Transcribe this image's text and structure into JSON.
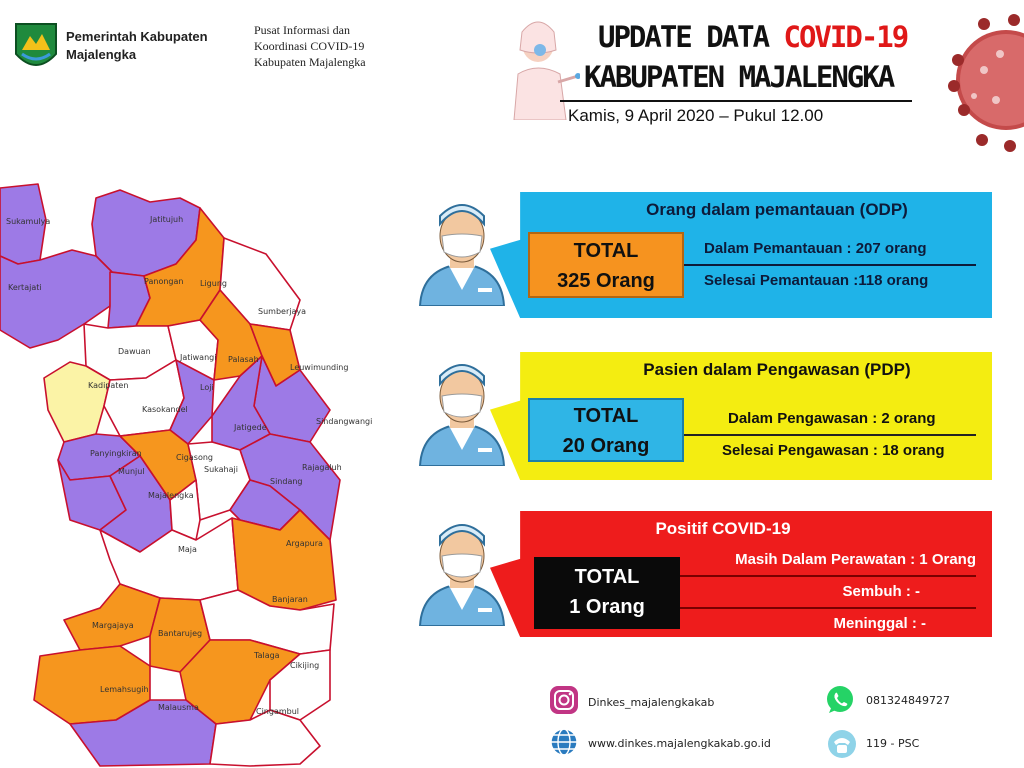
{
  "header": {
    "org_line1": "Pemerintah Kabupaten",
    "org_line2": "Majalengka",
    "center_line1": "Pusat Informasi dan",
    "center_line2": "Koordinasi COVID-19",
    "center_line3": "Kabupaten Majalengka",
    "title_prefix": "UPDATE DATA ",
    "title_highlight": "COVID-19",
    "title_line2": "KABUPATEN MAJALENGKA",
    "date": "Kamis, 9 April 2020 – Pukul 12.00"
  },
  "colors": {
    "odp": "#1fb3e8",
    "pdp": "#f4ed11",
    "positive": "#ee1c1c",
    "map_orange": "#f6961e",
    "map_purple": "#9d7ae6",
    "map_yellow": "#fbf3a6",
    "title_red": "#e01818"
  },
  "odp": {
    "title": "Orang dalam pemantauan (ODP)",
    "total_label": "TOTAL",
    "total_value": "325 Orang",
    "row1": "Dalam Pemantauan : 207 orang",
    "row2": "Selesai Pemantauan :118 orang"
  },
  "pdp": {
    "title": "Pasien dalam Pengawasan (PDP)",
    "total_label": "TOTAL",
    "total_value": "20 Orang",
    "row1": "Dalam Pengawasan : 2 orang",
    "row2": "Selesai Pengawasan : 18 orang"
  },
  "positive": {
    "title": "Positif  COVID-19",
    "total_label": "TOTAL",
    "total_value": "1 Orang",
    "row1": "Masih Dalam Perawatan : 1 Orang",
    "row2": "Sembuh : -",
    "row3": "Meninggal : -"
  },
  "map": {
    "districts": {
      "sukamulya": "Sukamulya",
      "jatitujuh": "Jatitujuh",
      "kertajati": "Kertajati",
      "ligung": "Ligung",
      "panongan": "Panongan",
      "sumberjaya": "Sumberjaya",
      "dawuan": "Dawuan",
      "jatiwangi": "Jatiwangi",
      "palasah": "Palasah",
      "leuwimunding": "Leuwimunding",
      "kadipaten": "Kadipaten",
      "lojt": "Loji",
      "kasokandel": "Kasokandel",
      "sindangwangi": "Sindangwangi",
      "jatigede": "Jatigede",
      "panyingkiran": "Panyingkiran",
      "cigasong": "Cigasong",
      "rajagaluh": "Rajagaluh",
      "munjul": "Munjul",
      "sukahaji": "Sukahaji",
      "sindang": "Sindang",
      "majalengka": "Majalengka",
      "maja": "Maja",
      "argapura": "Argapura",
      "bantarujeg": "Bantarujeg",
      "banjaran": "Banjaran",
      "margajaya": "Margajaya",
      "talaga": "Talaga",
      "cikijing": "Cikijing",
      "lemahsugih": "Lemahsugih",
      "malausma": "Malausma",
      "cingambul": "Cingambul"
    }
  },
  "footer": {
    "instagram": "Dinkes_majalengkakab",
    "website": "www.dinkes.majalengkakab.go.id",
    "whatsapp": "081324849727",
    "psc": "119 - PSC"
  }
}
